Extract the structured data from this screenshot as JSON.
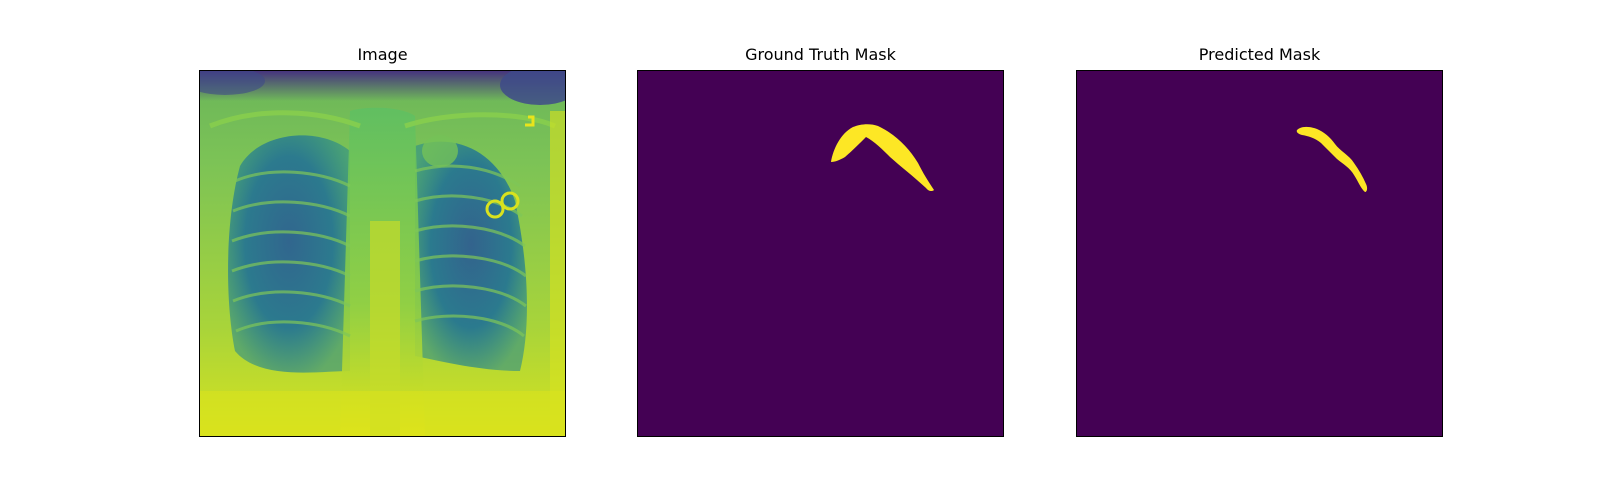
{
  "figure": {
    "panels": [
      {
        "title": "Image"
      },
      {
        "title": "Ground Truth Mask"
      },
      {
        "title": "Predicted Mask"
      }
    ]
  },
  "colors": {
    "background": "#ffffff",
    "mask_background": "#440154",
    "mask_foreground": "#fde725",
    "xray_dark": "#3b528b",
    "xray_mid": "#21918c",
    "xray_light": "#5ec962",
    "xray_bright": "#dde318"
  }
}
